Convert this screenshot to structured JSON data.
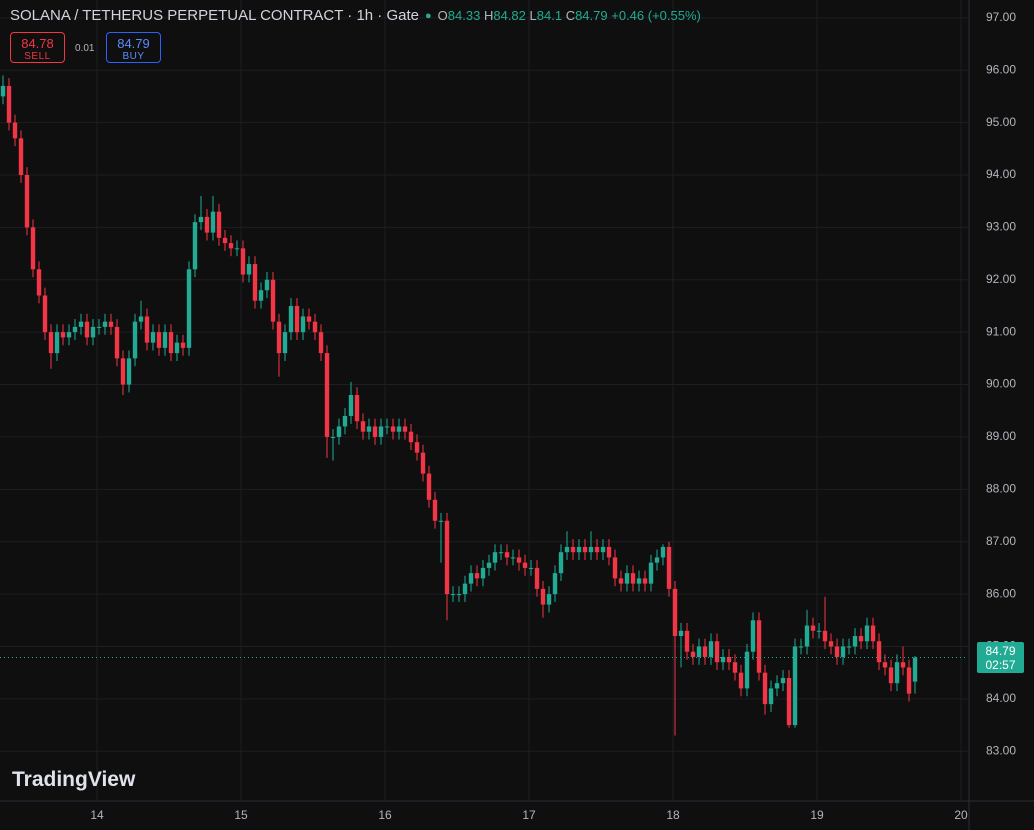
{
  "logo": "TradingView",
  "trade": {
    "sell_price": "84.78",
    "sell_label": "SELL",
    "spread": "0.01",
    "buy_price": "84.79",
    "buy_label": "BUY"
  },
  "chart_data": {
    "type": "candlestick",
    "title": "SOLANA / TETHERUS PERPETUAL CONTRACT · 1h · Gate",
    "ohlc_keys": [
      "O",
      "H",
      "L",
      "C"
    ],
    "change": "+0.46 (+0.55%)",
    "countdown": "02:57",
    "up_color": "#22ab94",
    "down_color": "#f23645",
    "grid": true,
    "ylim": [
      82.07,
      97.34
    ],
    "yticks": [
      {
        "value": 83,
        "label": "83.00"
      },
      {
        "value": 84,
        "label": "84.00"
      },
      {
        "value": 85,
        "label": "85.00"
      },
      {
        "value": 86,
        "label": "86.00"
      },
      {
        "value": 87,
        "label": "87.00"
      },
      {
        "value": 88,
        "label": "88.00"
      },
      {
        "value": 89,
        "label": "89.00"
      },
      {
        "value": 90,
        "label": "90.00"
      },
      {
        "value": 91,
        "label": "91.00"
      },
      {
        "value": 92,
        "label": "92.00"
      },
      {
        "value": 93,
        "label": "93.00"
      },
      {
        "value": 94,
        "label": "94.00"
      },
      {
        "value": 95,
        "label": "95.00"
      },
      {
        "value": 96,
        "label": "96.00"
      },
      {
        "value": 97,
        "label": "97.00"
      }
    ],
    "xlim": [
      -0.5,
      160.83
    ],
    "xticks": [
      {
        "value": 15.67,
        "label": "14"
      },
      {
        "value": 39.67,
        "label": "15"
      },
      {
        "value": 63.67,
        "label": "16"
      },
      {
        "value": 87.67,
        "label": "17"
      },
      {
        "value": 111.67,
        "label": "18"
      },
      {
        "value": 135.67,
        "label": "19"
      },
      {
        "value": 159.67,
        "label": "20"
      }
    ],
    "ohlc": [
      [
        95.5,
        95.9,
        95.35,
        95.7
      ],
      [
        95.7,
        95.85,
        94.85,
        95.0
      ],
      [
        95.0,
        95.15,
        94.55,
        94.7
      ],
      [
        94.7,
        94.85,
        93.85,
        94.0
      ],
      [
        94.0,
        94.15,
        92.85,
        93.0
      ],
      [
        93.0,
        93.15,
        92.05,
        92.2
      ],
      [
        92.2,
        92.35,
        91.55,
        91.7
      ],
      [
        91.7,
        91.85,
        90.85,
        91.0
      ],
      [
        91.0,
        91.15,
        90.3,
        90.6
      ],
      [
        90.6,
        91.15,
        90.45,
        91.0
      ],
      [
        91.0,
        91.15,
        90.75,
        90.9
      ],
      [
        90.9,
        91.15,
        90.75,
        91.0
      ],
      [
        91.0,
        91.25,
        90.85,
        91.1
      ],
      [
        91.1,
        91.35,
        90.95,
        91.2
      ],
      [
        91.2,
        91.35,
        90.75,
        90.9
      ],
      [
        90.9,
        91.25,
        90.75,
        91.1
      ],
      [
        91.1,
        91.25,
        90.95,
        91.1
      ],
      [
        91.1,
        91.35,
        90.95,
        91.2
      ],
      [
        91.2,
        91.35,
        90.95,
        91.1
      ],
      [
        91.1,
        91.25,
        90.35,
        90.5
      ],
      [
        90.5,
        90.65,
        89.8,
        90.0
      ],
      [
        90.0,
        90.65,
        89.85,
        90.5
      ],
      [
        90.5,
        91.35,
        90.35,
        91.2
      ],
      [
        91.2,
        91.6,
        91.05,
        91.3
      ],
      [
        91.3,
        91.45,
        90.65,
        90.8
      ],
      [
        90.8,
        91.15,
        90.65,
        91.0
      ],
      [
        91.0,
        91.15,
        90.55,
        90.7
      ],
      [
        90.7,
        91.15,
        90.55,
        91.0
      ],
      [
        91.0,
        91.15,
        90.45,
        90.6
      ],
      [
        90.6,
        90.95,
        90.45,
        90.8
      ],
      [
        90.8,
        90.95,
        90.55,
        90.7
      ],
      [
        90.7,
        92.35,
        90.55,
        92.2
      ],
      [
        92.2,
        93.25,
        92.05,
        93.1
      ],
      [
        93.1,
        93.6,
        92.95,
        93.2
      ],
      [
        93.2,
        93.35,
        92.75,
        92.9
      ],
      [
        92.9,
        93.6,
        92.75,
        93.3
      ],
      [
        93.3,
        93.45,
        92.65,
        92.8
      ],
      [
        92.8,
        92.95,
        92.55,
        92.7
      ],
      [
        92.7,
        92.85,
        92.45,
        92.6
      ],
      [
        92.6,
        92.75,
        92.45,
        92.6
      ],
      [
        92.6,
        92.75,
        91.95,
        92.1
      ],
      [
        92.1,
        92.45,
        91.95,
        92.3
      ],
      [
        92.3,
        92.45,
        91.45,
        91.6
      ],
      [
        91.6,
        91.95,
        91.45,
        91.8
      ],
      [
        91.8,
        92.15,
        91.65,
        92.0
      ],
      [
        92.0,
        92.15,
        91.05,
        91.2
      ],
      [
        91.2,
        91.35,
        90.15,
        90.6
      ],
      [
        90.6,
        91.15,
        90.45,
        91.0
      ],
      [
        91.0,
        91.65,
        90.85,
        91.5
      ],
      [
        91.5,
        91.65,
        90.85,
        91.0
      ],
      [
        91.0,
        91.45,
        90.85,
        91.3
      ],
      [
        91.3,
        91.45,
        91.05,
        91.2
      ],
      [
        91.2,
        91.35,
        90.85,
        91.0
      ],
      [
        91.0,
        91.15,
        90.45,
        90.6
      ],
      [
        90.6,
        90.75,
        88.6,
        89.0
      ],
      [
        89.0,
        89.15,
        88.55,
        89.0
      ],
      [
        89.0,
        89.35,
        88.85,
        89.2
      ],
      [
        89.2,
        89.55,
        89.05,
        89.4
      ],
      [
        89.4,
        90.05,
        89.25,
        89.8
      ],
      [
        89.8,
        89.95,
        89.15,
        89.3
      ],
      [
        89.3,
        89.45,
        88.95,
        89.1
      ],
      [
        89.1,
        89.35,
        88.95,
        89.2
      ],
      [
        89.2,
        89.35,
        88.85,
        89.0
      ],
      [
        89.0,
        89.35,
        88.85,
        89.2
      ],
      [
        89.2,
        89.35,
        89.05,
        89.2
      ],
      [
        89.2,
        89.35,
        88.95,
        89.1
      ],
      [
        89.1,
        89.35,
        88.95,
        89.2
      ],
      [
        89.2,
        89.35,
        88.95,
        89.1
      ],
      [
        89.1,
        89.25,
        88.75,
        88.9
      ],
      [
        88.9,
        89.05,
        88.55,
        88.7
      ],
      [
        88.7,
        88.85,
        88.15,
        88.3
      ],
      [
        88.3,
        88.45,
        87.65,
        87.8
      ],
      [
        87.8,
        87.95,
        87.25,
        87.4
      ],
      [
        87.4,
        87.55,
        86.6,
        87.4
      ],
      [
        87.4,
        87.55,
        85.5,
        86.0
      ],
      [
        86.0,
        86.15,
        85.85,
        86.0
      ],
      [
        86.0,
        86.15,
        85.85,
        86.0
      ],
      [
        86.0,
        86.35,
        85.85,
        86.2
      ],
      [
        86.2,
        86.55,
        86.05,
        86.4
      ],
      [
        86.4,
        86.55,
        86.15,
        86.3
      ],
      [
        86.3,
        86.65,
        86.15,
        86.5
      ],
      [
        86.5,
        86.75,
        86.35,
        86.6
      ],
      [
        86.6,
        86.95,
        86.45,
        86.8
      ],
      [
        86.8,
        86.95,
        86.65,
        86.8
      ],
      [
        86.8,
        86.95,
        86.55,
        86.7
      ],
      [
        86.7,
        86.85,
        86.55,
        86.7
      ],
      [
        86.7,
        86.85,
        86.45,
        86.6
      ],
      [
        86.6,
        86.75,
        86.35,
        86.5
      ],
      [
        86.5,
        86.65,
        86.35,
        86.5
      ],
      [
        86.5,
        86.65,
        85.95,
        86.1
      ],
      [
        86.1,
        86.25,
        85.55,
        85.8
      ],
      [
        85.8,
        86.15,
        85.65,
        86.0
      ],
      [
        86.0,
        86.55,
        85.85,
        86.4
      ],
      [
        86.4,
        86.95,
        86.25,
        86.8
      ],
      [
        86.8,
        87.2,
        86.65,
        86.9
      ],
      [
        86.9,
        87.05,
        86.65,
        86.8
      ],
      [
        86.8,
        87.05,
        86.65,
        86.9
      ],
      [
        86.9,
        87.05,
        86.65,
        86.8
      ],
      [
        86.8,
        87.2,
        86.65,
        86.9
      ],
      [
        86.9,
        87.05,
        86.65,
        86.8
      ],
      [
        86.8,
        87.05,
        86.65,
        86.9
      ],
      [
        86.9,
        87.05,
        86.55,
        86.7
      ],
      [
        86.7,
        86.85,
        86.15,
        86.3
      ],
      [
        86.3,
        86.45,
        86.05,
        86.2
      ],
      [
        86.2,
        86.55,
        86.05,
        86.4
      ],
      [
        86.4,
        86.55,
        86.05,
        86.2
      ],
      [
        86.2,
        86.45,
        86.05,
        86.3
      ],
      [
        86.3,
        86.45,
        86.05,
        86.2
      ],
      [
        86.2,
        86.75,
        86.05,
        86.6
      ],
      [
        86.6,
        86.85,
        86.45,
        86.7
      ],
      [
        86.7,
        86.95,
        86.55,
        86.9
      ],
      [
        86.9,
        87.0,
        85.95,
        86.1
      ],
      [
        86.1,
        86.25,
        83.3,
        85.2
      ],
      [
        85.2,
        85.45,
        84.6,
        85.3
      ],
      [
        85.3,
        85.45,
        84.75,
        84.9
      ],
      [
        84.9,
        85.05,
        84.65,
        84.8
      ],
      [
        84.8,
        85.15,
        84.65,
        85.0
      ],
      [
        85.0,
        85.15,
        84.65,
        84.8
      ],
      [
        84.8,
        85.25,
        84.65,
        85.1
      ],
      [
        85.1,
        85.25,
        84.55,
        84.7
      ],
      [
        84.7,
        84.95,
        84.55,
        84.8
      ],
      [
        84.8,
        84.95,
        84.55,
        84.7
      ],
      [
        84.7,
        84.85,
        84.35,
        84.5
      ],
      [
        84.5,
        84.65,
        84.05,
        84.2
      ],
      [
        84.2,
        85.05,
        84.05,
        84.9
      ],
      [
        84.9,
        85.65,
        84.75,
        85.5
      ],
      [
        85.5,
        85.65,
        84.35,
        84.5
      ],
      [
        84.5,
        84.65,
        83.7,
        83.9
      ],
      [
        83.9,
        84.35,
        83.75,
        84.2
      ],
      [
        84.2,
        84.45,
        84.05,
        84.3
      ],
      [
        84.3,
        84.55,
        84.15,
        84.4
      ],
      [
        84.4,
        84.55,
        83.45,
        83.5
      ],
      [
        83.5,
        85.15,
        83.45,
        85.0
      ],
      [
        85.0,
        85.15,
        84.85,
        85.0
      ],
      [
        85.0,
        85.7,
        84.85,
        85.4
      ],
      [
        85.4,
        85.55,
        85.15,
        85.3
      ],
      [
        85.3,
        85.45,
        85.15,
        85.3
      ],
      [
        85.3,
        85.95,
        84.95,
        85.1
      ],
      [
        85.1,
        85.25,
        84.85,
        85.0
      ],
      [
        85.0,
        85.15,
        84.65,
        84.8
      ],
      [
        84.8,
        85.15,
        84.65,
        85.0
      ],
      [
        85.0,
        85.15,
        84.85,
        85.0
      ],
      [
        85.0,
        85.35,
        84.85,
        85.2
      ],
      [
        85.2,
        85.35,
        84.95,
        85.1
      ],
      [
        85.1,
        85.55,
        84.95,
        85.4
      ],
      [
        85.4,
        85.55,
        84.95,
        85.1
      ],
      [
        85.1,
        85.25,
        84.55,
        84.7
      ],
      [
        84.7,
        84.85,
        84.45,
        84.6
      ],
      [
        84.6,
        84.75,
        84.15,
        84.3
      ],
      [
        84.3,
        84.85,
        84.15,
        84.7
      ],
      [
        84.7,
        85.0,
        84.45,
        84.6
      ],
      [
        84.6,
        84.75,
        83.95,
        84.1
      ],
      [
        84.33,
        84.82,
        84.1,
        84.79
      ]
    ]
  }
}
